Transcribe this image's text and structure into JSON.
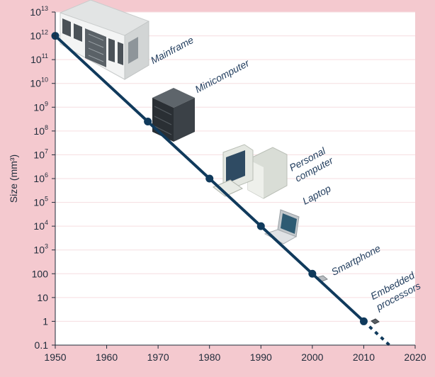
{
  "chart_data": {
    "type": "line",
    "title": "",
    "xlabel": "",
    "ylabel": "Size (mm³)",
    "xlim": [
      1950,
      2020
    ],
    "ylim_log10": [
      -1,
      13
    ],
    "y_scale": "log",
    "grid": true,
    "x_ticks": [
      "1950",
      "1960",
      "1970",
      "1980",
      "1990",
      "2000",
      "2010",
      "2020"
    ],
    "y_ticks": [
      {
        "exp": 13,
        "base": "10",
        "sup": "13"
      },
      {
        "exp": 12,
        "base": "10",
        "sup": "12"
      },
      {
        "exp": 11,
        "base": "10",
        "sup": "11"
      },
      {
        "exp": 10,
        "base": "10",
        "sup": "10"
      },
      {
        "exp": 9,
        "base": "10",
        "sup": "9"
      },
      {
        "exp": 8,
        "base": "10",
        "sup": "8"
      },
      {
        "exp": 7,
        "base": "10",
        "sup": "7"
      },
      {
        "exp": 6,
        "base": "10",
        "sup": "6"
      },
      {
        "exp": 5,
        "base": "10",
        "sup": "5"
      },
      {
        "exp": 4,
        "base": "10",
        "sup": "4"
      },
      {
        "exp": 3,
        "base": "10",
        "sup": "3"
      },
      {
        "exp": 2,
        "base": "100",
        "sup": ""
      },
      {
        "exp": 1,
        "base": "10",
        "sup": ""
      },
      {
        "exp": 0,
        "base": "1",
        "sup": ""
      },
      {
        "exp": -1,
        "base": "0.1",
        "sup": ""
      }
    ],
    "series": [
      {
        "points": [
          {
            "label": "Mainframe",
            "year": 1950,
            "size": 1000000000000
          },
          {
            "label": "Minicomputer",
            "year": 1968,
            "size": 250000000
          },
          {
            "label": "Personal computer",
            "year": 1980,
            "size": 1000000
          },
          {
            "label": "Laptop",
            "year": 1990,
            "size": 10000
          },
          {
            "label": "Smartphone",
            "year": 2000,
            "size": 100
          },
          {
            "label": "Embedded processors",
            "year": 2010,
            "size": 1
          }
        ],
        "projection": [
          {
            "year": 2010,
            "size": 1
          },
          {
            "year": 2015,
            "size": 0.1
          }
        ]
      }
    ],
    "annotations": [
      {
        "lines": [
          "Mainframe"
        ]
      },
      {
        "lines": [
          "Minicomputer"
        ]
      },
      {
        "lines": [
          "Personal",
          "computer"
        ]
      },
      {
        "lines": [
          "Laptop"
        ]
      },
      {
        "lines": [
          "Smartphone"
        ]
      },
      {
        "lines": [
          "Embedded",
          "processors"
        ]
      }
    ],
    "icons": [
      "mainframe-icon",
      "minicomputer-icon",
      "personal-computer-icon",
      "laptop-icon",
      "smartphone-icon",
      "embedded-processor-icon"
    ],
    "colors": {
      "line": "#103a5c",
      "background": "#f4c9cf",
      "plot": "#ffffff",
      "grid": "#f6dde0"
    }
  }
}
